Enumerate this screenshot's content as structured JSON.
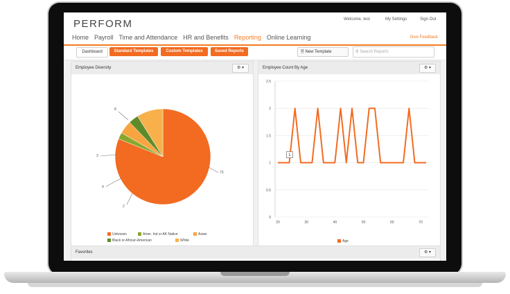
{
  "app": {
    "logo": "PERFORM"
  },
  "header": {
    "welcome": "Welcome, test",
    "settings": "My Settings",
    "signout": "Sign Out",
    "feedback": "Give Feedback"
  },
  "nav": {
    "items": [
      "Home",
      "Payroll",
      "Time and Attendance",
      "HR and Benefits",
      "Reporting",
      "Online Learning"
    ],
    "active": "Reporting"
  },
  "subnav": {
    "tabs": [
      "Dashboard",
      "Standard Templates",
      "Custom Templates",
      "Saved Reports"
    ],
    "new_template": "New Template",
    "search_placeholder": "Search Reports"
  },
  "panels": {
    "diversity_title": "Employee Diversity",
    "age_title": "Employee Count By Age",
    "favorites_title": "Favorites"
  },
  "colors": {
    "accent": "#f47b20",
    "orange": "#f77f21",
    "olive": "#8aa62c",
    "lightorange": "#f7a540",
    "darkgreen": "#5e8b2a",
    "white_slice": "#f8b04b"
  },
  "chart_data": [
    {
      "type": "pie",
      "title": "Employee Diversity",
      "slices": [
        {
          "label": "Unknown",
          "value": 73
        },
        {
          "label": "Amer. Ind or AK Native",
          "value": 2
        },
        {
          "label": "Asian",
          "value": 4
        },
        {
          "label": "Black or African American",
          "value": 3
        },
        {
          "label": "White",
          "value": 8
        }
      ],
      "data_labels": [
        "73",
        "2",
        "4",
        "3",
        "8"
      ],
      "legend": [
        "Unknown",
        "Amer. Ind or AK Native",
        "Asian",
        "Black or African American",
        "White"
      ],
      "legend_placement": "bottom"
    },
    {
      "type": "line",
      "title": "Employee Count By Age",
      "series": [
        {
          "name": "Age",
          "values": [
            1,
            1,
            1,
            2,
            1,
            1,
            1,
            2,
            1,
            1,
            1,
            2,
            1,
            2,
            1,
            1,
            2,
            2,
            1,
            1,
            1,
            1,
            1,
            2,
            1,
            1,
            1
          ]
        }
      ],
      "ylim": [
        0,
        2.5
      ],
      "yticks": [
        "0",
        "0.5",
        "1",
        "1.5",
        "2",
        "2.5"
      ],
      "xticks": [
        "20",
        "30",
        "40",
        "50",
        "60",
        "70"
      ],
      "tooltip": "1",
      "legend": [
        "Age"
      ],
      "legend_placement": "bottom"
    }
  ]
}
